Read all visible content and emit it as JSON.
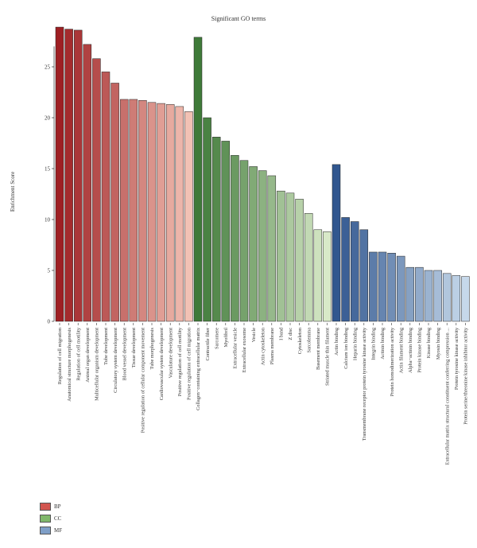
{
  "chart_data": {
    "type": "bar",
    "title": "Significant GO terms",
    "xlabel": "",
    "ylabel": "Enrichment Score",
    "ylim": [
      0,
      30
    ],
    "yticks": [
      0,
      5,
      10,
      15,
      20,
      25
    ],
    "grid": false,
    "legend_position": "bottom-left",
    "categories": [
      "Regulation of cell migration",
      "Anatomical structure morphogenesis",
      "Regulation of cell motility",
      "Animal organ development",
      "Multicellular organism development",
      "Tube development",
      "Circulatory system development",
      "Blood vessel development",
      "Tissue development",
      "Positive regulation of cellular component movement",
      "Tube morphogenesis",
      "Cardiovascular system development",
      "Vasculature development",
      "Positive regulation of cell motility",
      "Positive regulation of cell migration",
      "Collagen−containing extracellular matrix",
      "Contractile fiber",
      "Sarcomere",
      "Myofibril",
      "Extracellular vesicle",
      "Extracellular exosome",
      "Vesicle",
      "Actin cytoskeleton",
      "Plasma membrane",
      "I band",
      "Z disc",
      "Cytoskeleton",
      "Sarcolemma",
      "Basement membrane",
      "Striated muscle thin filament",
      "Actin binding",
      "Calcium ion binding",
      "Heparin binding",
      "Transmembrane receptor protein tyrosine kinase activity",
      "Integrin binding",
      "Actinin binding",
      "Protein homodimerization activity",
      "Actin filament binding",
      "Alpha−actinin binding",
      "Protein kinase binding",
      "Kinase binding",
      "Myosin binding",
      "Extracellular matrix structural constituent conferring compression ...",
      "Protein tyrosine kinase activity",
      "Protein serine/threonine kinase inhibitor activity"
    ],
    "values": [
      28.9,
      28.7,
      28.6,
      27.2,
      25.8,
      24.5,
      23.4,
      21.8,
      21.8,
      21.7,
      21.5,
      21.4,
      21.3,
      21.1,
      20.6,
      27.9,
      20.0,
      18.1,
      17.7,
      16.3,
      15.8,
      15.2,
      14.8,
      14.3,
      12.8,
      12.6,
      12.0,
      10.6,
      9.0,
      8.8,
      15.4,
      10.2,
      9.8,
      9.0,
      6.8,
      6.8,
      6.7,
      6.4,
      5.3,
      5.3,
      5.0,
      5.0,
      4.7,
      4.5,
      4.4
    ],
    "groups": [
      "BP",
      "BP",
      "BP",
      "BP",
      "BP",
      "BP",
      "BP",
      "BP",
      "BP",
      "BP",
      "BP",
      "BP",
      "BP",
      "BP",
      "BP",
      "CC",
      "CC",
      "CC",
      "CC",
      "CC",
      "CC",
      "CC",
      "CC",
      "CC",
      "CC",
      "CC",
      "CC",
      "CC",
      "CC",
      "CC",
      "MF",
      "MF",
      "MF",
      "MF",
      "MF",
      "MF",
      "MF",
      "MF",
      "MF",
      "MF",
      "MF",
      "MF",
      "MF",
      "MF",
      "MF"
    ],
    "group_colors": {
      "BP": [
        "#9e1f23",
        "#f2c1b4"
      ],
      "CC": [
        "#3f7a39",
        "#d8e9c8"
      ],
      "MF": [
        "#31578f",
        "#c6d8ea"
      ]
    },
    "legend": [
      {
        "label": "BP",
        "color": "#d2554f"
      },
      {
        "label": "CC",
        "color": "#80b86b"
      },
      {
        "label": "MF",
        "color": "#7f9fc7"
      }
    ]
  }
}
